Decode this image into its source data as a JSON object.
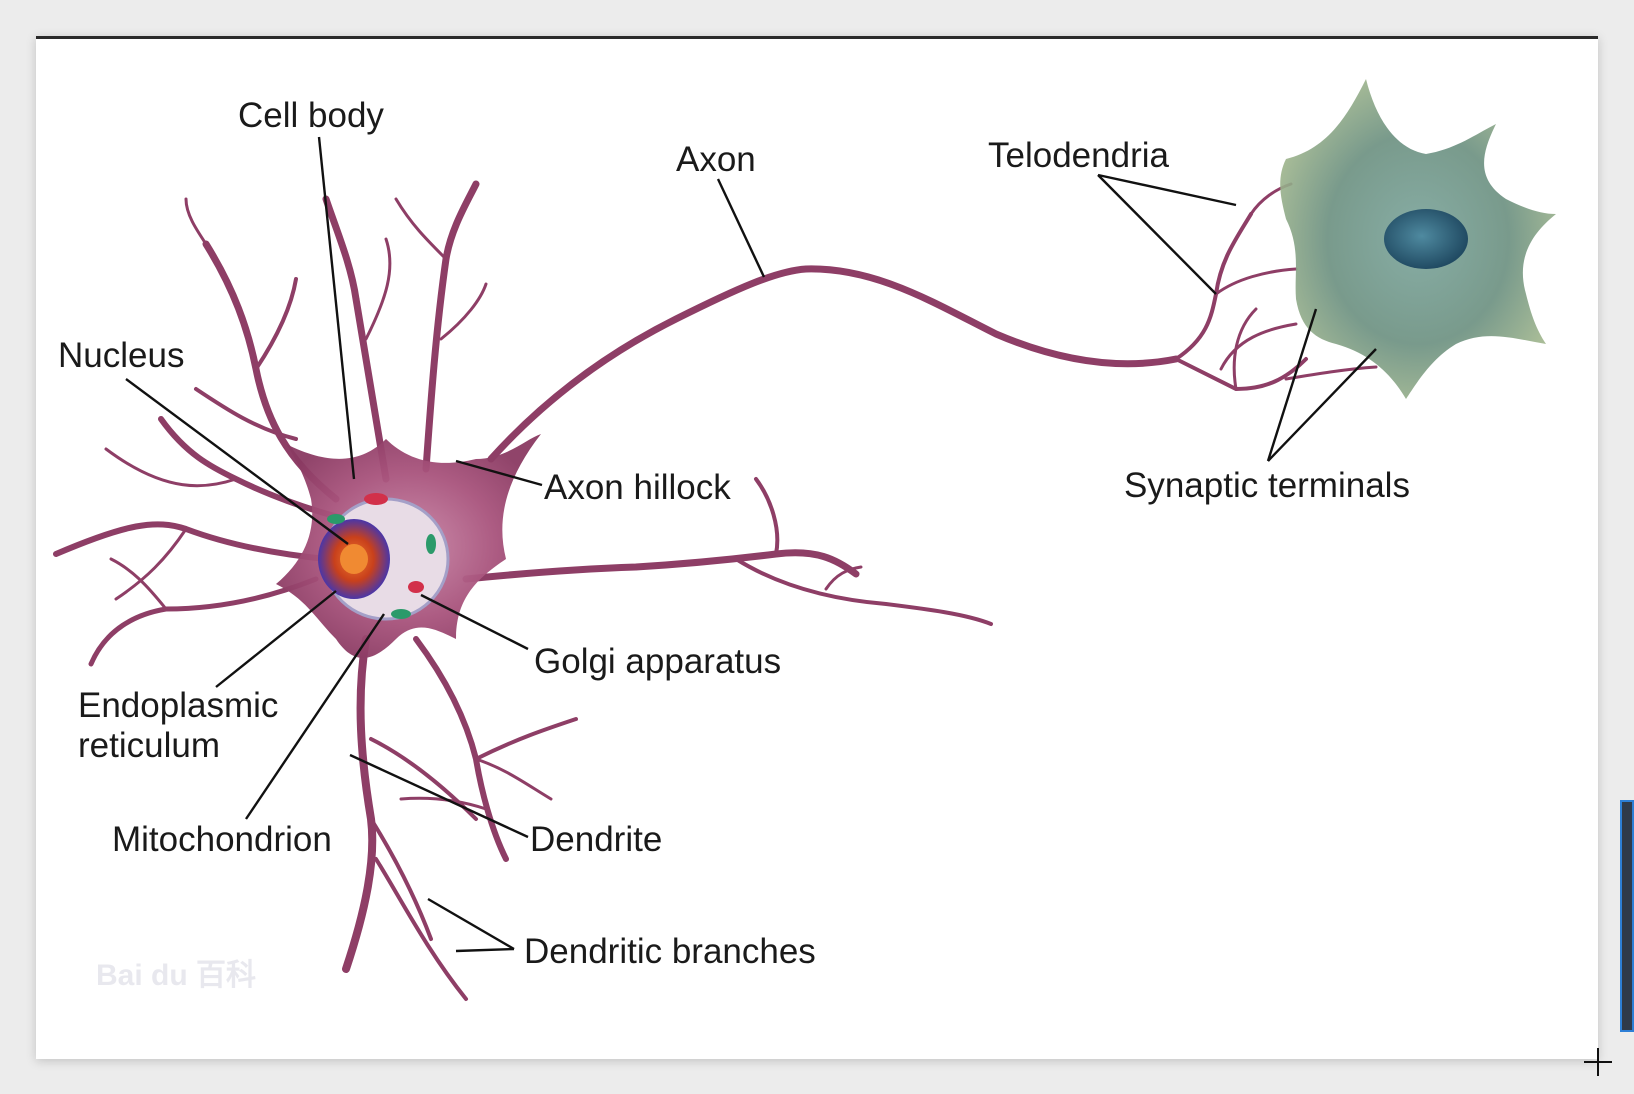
{
  "labels": {
    "cell_body": "Cell body",
    "axon": "Axon",
    "telodendria": "Telodendria",
    "nucleus": "Nucleus",
    "axon_hillock": "Axon hillock",
    "synaptic_terminals": "Synaptic terminals",
    "golgi_apparatus": "Golgi apparatus",
    "endoplasmic_reticulum_line1": "Endoplasmic",
    "endoplasmic_reticulum_line2": "reticulum",
    "mitochondrion": "Mitochondrion",
    "dendrite": "Dendrite",
    "dendritic_branches": "Dendritic branches"
  },
  "watermark": "Bai du 百科",
  "colors": {
    "neuron_body": "#8e3e66",
    "neuron_fill": "#b05c84",
    "nucleus": "#d2481e",
    "target_cell": "#6f8f8a",
    "leader_line": "#111111"
  }
}
